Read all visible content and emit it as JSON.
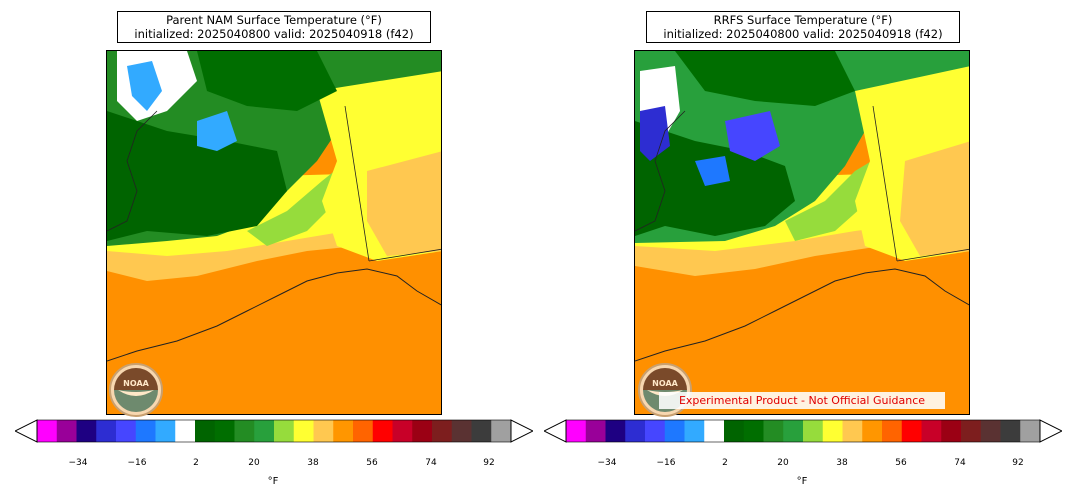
{
  "panels": [
    {
      "title_line1": "Parent NAM Surface Temperature (°F)",
      "title_line2": "initialized: 2025040800 valid: 2025040918 (f42)"
    },
    {
      "title_line1": "RRFS Surface Temperature (°F)",
      "title_line2": "initialized: 2025040800 valid: 2025040918 (f42)"
    }
  ],
  "colorbar": {
    "unit": "°F",
    "tick_labels": [
      "−34",
      "−16",
      "2",
      "20",
      "38",
      "56",
      "74",
      "92"
    ],
    "colors": [
      "#ff00ff",
      "#990099",
      "#1e0082",
      "#2d2dd2",
      "#4646ff",
      "#1e78ff",
      "#32aaff",
      "#ffffff",
      "#006400",
      "#006e00",
      "#238c23",
      "#28a03c",
      "#96dc3c",
      "#ffff32",
      "#ffc850",
      "#ff9600",
      "#ff6400",
      "#ff0000",
      "#c80028",
      "#9b0014",
      "#7d1e1e",
      "#5a3232",
      "#3c3c3c",
      "#a0a0a0"
    ],
    "under_color": "#ffffff",
    "over_color": "#ffffff"
  },
  "logo": {
    "text": "NOAA"
  },
  "watermark": "Experimental Product - Not Official Guidance"
}
